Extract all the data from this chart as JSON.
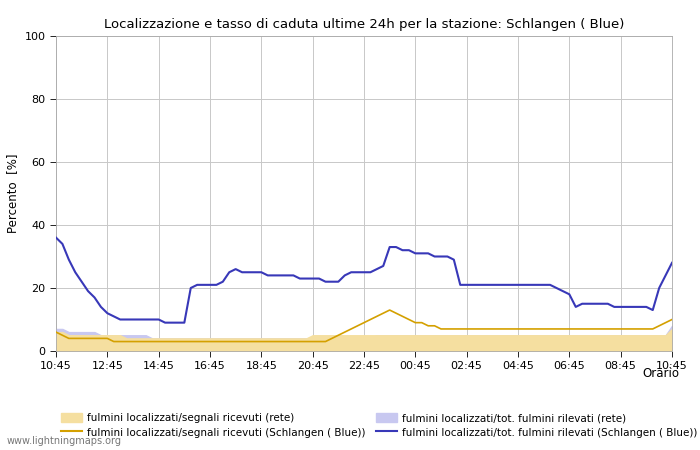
{
  "title": "Localizzazione e tasso di caduta ultime 24h per la stazione: Schlangen ( Blue)",
  "ylabel": "Percento  [%]",
  "xlabel": "Orario",
  "ylim": [
    0,
    100
  ],
  "yticks": [
    0,
    20,
    40,
    60,
    80,
    100
  ],
  "xtick_labels": [
    "10:45",
    "12:45",
    "14:45",
    "16:45",
    "18:45",
    "20:45",
    "22:45",
    "00:45",
    "02:45",
    "04:45",
    "06:45",
    "08:45",
    "10:45"
  ],
  "watermark": "www.lightningmaps.org",
  "fill_rete_signals_color": "#f5dfa0",
  "fill_rete_total_color": "#c8c8f0",
  "line_schlangen_signals_color": "#d4a000",
  "line_schlangen_total_color": "#3838b8",
  "background_color": "#ffffff",
  "plot_bg_color": "#ffffff",
  "grid_color": "#c8c8c8",
  "legend_patch1_label": "fulmini localizzati/segnali ricevuti (rete)",
  "legend_line1_label": "fulmini localizzati/segnali ricevuti (Schlangen ( Blue))",
  "legend_patch2_label": "fulmini localizzati/tot. fulmini rilevati (rete)",
  "legend_line2_label": "fulmini localizzati/tot. fulmini rilevati (Schlangen ( Blue))",
  "x_numeric": [
    0,
    1,
    2,
    3,
    4,
    5,
    6,
    7,
    8,
    9,
    10,
    11,
    12,
    13,
    14,
    15,
    16,
    17,
    18,
    19,
    20,
    21,
    22,
    23,
    24,
    25,
    26,
    27,
    28,
    29,
    30,
    31,
    32,
    33,
    34,
    35,
    36,
    37,
    38,
    39,
    40,
    41,
    42,
    43,
    44,
    45,
    46,
    47,
    48,
    49,
    50,
    51,
    52,
    53,
    54,
    55,
    56,
    57,
    58,
    59,
    60,
    61,
    62,
    63,
    64,
    65,
    66,
    67,
    68,
    69,
    70,
    71,
    72,
    73,
    74,
    75,
    76,
    77,
    78,
    79,
    80,
    81,
    82,
    83,
    84,
    85,
    86,
    87,
    88,
    89,
    90,
    91,
    92,
    93,
    94,
    95,
    96
  ],
  "rete_signals": [
    6,
    6,
    5,
    5,
    5,
    5,
    5,
    5,
    5,
    5,
    5,
    4,
    4,
    4,
    4,
    4,
    4,
    4,
    4,
    4,
    4,
    4,
    4,
    4,
    4,
    4,
    4,
    4,
    4,
    4,
    4,
    4,
    4,
    4,
    4,
    4,
    4,
    4,
    4,
    4,
    5,
    5,
    5,
    5,
    5,
    5,
    5,
    5,
    5,
    5,
    5,
    5,
    5,
    5,
    5,
    5,
    5,
    5,
    5,
    5,
    5,
    5,
    5,
    5,
    5,
    5,
    5,
    5,
    5,
    5,
    5,
    5,
    5,
    5,
    5,
    5,
    5,
    5,
    5,
    5,
    5,
    5,
    5,
    5,
    5,
    5,
    5,
    5,
    5,
    5,
    5,
    5,
    5,
    5,
    5,
    5,
    7
  ],
  "rete_total": [
    7,
    7,
    6,
    6,
    6,
    6,
    6,
    5,
    5,
    5,
    5,
    5,
    5,
    5,
    5,
    4,
    4,
    4,
    4,
    4,
    4,
    4,
    4,
    4,
    4,
    4,
    4,
    4,
    4,
    4,
    4,
    4,
    4,
    4,
    4,
    4,
    4,
    4,
    4,
    4,
    4,
    4,
    4,
    4,
    4,
    4,
    4,
    4,
    4,
    4,
    5,
    5,
    5,
    5,
    5,
    5,
    5,
    5,
    5,
    5,
    5,
    5,
    5,
    5,
    5,
    5,
    5,
    5,
    5,
    5,
    5,
    5,
    5,
    5,
    5,
    5,
    5,
    5,
    5,
    5,
    5,
    5,
    5,
    5,
    5,
    5,
    5,
    5,
    5,
    5,
    5,
    5,
    5,
    5,
    5,
    5,
    8
  ],
  "schlangen_signals": [
    6,
    5,
    4,
    4,
    4,
    4,
    4,
    4,
    4,
    3,
    3,
    3,
    3,
    3,
    3,
    3,
    3,
    3,
    3,
    3,
    3,
    3,
    3,
    3,
    3,
    3,
    3,
    3,
    3,
    3,
    3,
    3,
    3,
    3,
    3,
    3,
    3,
    3,
    3,
    3,
    3,
    3,
    3,
    4,
    5,
    6,
    7,
    8,
    9,
    10,
    11,
    12,
    13,
    12,
    11,
    10,
    9,
    9,
    8,
    8,
    7,
    7,
    7,
    7,
    7,
    7,
    7,
    7,
    7,
    7,
    7,
    7,
    7,
    7,
    7,
    7,
    7,
    7,
    7,
    7,
    7,
    7,
    7,
    7,
    7,
    7,
    7,
    7,
    7,
    7,
    7,
    7,
    7,
    7,
    8,
    9,
    10
  ],
  "schlangen_total": [
    36,
    34,
    29,
    25,
    22,
    19,
    17,
    14,
    12,
    11,
    10,
    10,
    10,
    10,
    10,
    10,
    10,
    9,
    9,
    9,
    9,
    20,
    21,
    21,
    21,
    21,
    22,
    25,
    26,
    25,
    25,
    25,
    25,
    24,
    24,
    24,
    24,
    24,
    23,
    23,
    23,
    23,
    22,
    22,
    22,
    24,
    25,
    25,
    25,
    25,
    26,
    27,
    33,
    33,
    32,
    32,
    31,
    31,
    31,
    30,
    30,
    30,
    29,
    21,
    21,
    21,
    21,
    21,
    21,
    21,
    21,
    21,
    21,
    21,
    21,
    21,
    21,
    21,
    20,
    19,
    18,
    14,
    15,
    15,
    15,
    15,
    15,
    14,
    14,
    14,
    14,
    14,
    14,
    13,
    20,
    24,
    28
  ]
}
